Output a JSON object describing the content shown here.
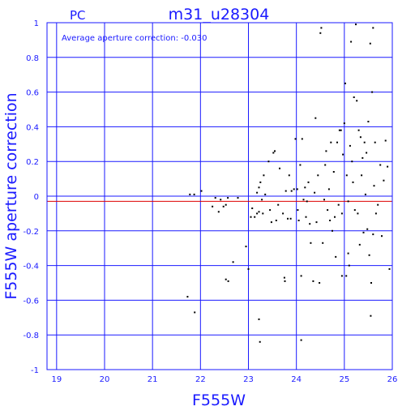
{
  "chart_data": {
    "type": "scatter",
    "corner_label": "PC",
    "title": "m31_u28304",
    "xlabel": "F555W",
    "ylabel": "F555W aperture correction",
    "annotation": "Average aperture correction: -0.030",
    "xlim": [
      18.8,
      26.0
    ],
    "ylim": [
      -1.0,
      1.0
    ],
    "x_ticks": [
      19,
      20,
      21,
      22,
      23,
      24,
      25,
      26
    ],
    "y_ticks": [
      -1,
      -0.8,
      -0.6,
      -0.4,
      -0.2,
      0,
      0.2,
      0.4,
      0.6,
      0.8,
      1
    ],
    "y_tick_labels": [
      "-1",
      "-0.8",
      "-0.6",
      "-0.4",
      "-0.2",
      "0",
      "0.2",
      "0.4",
      "0.6",
      "0.8",
      "1"
    ],
    "grid": true,
    "average_line": -0.03,
    "colors": {
      "axes": "#1a1aff",
      "average_line": "#dd0000",
      "points": "#000000"
    },
    "points": [
      [
        21.78,
        0.01
      ],
      [
        21.87,
        0.01
      ],
      [
        22.02,
        0.03
      ],
      [
        22.25,
        -0.06
      ],
      [
        22.31,
        -0.01
      ],
      [
        22.38,
        -0.09
      ],
      [
        22.42,
        -0.02
      ],
      [
        22.48,
        -0.06
      ],
      [
        22.53,
        -0.05
      ],
      [
        22.57,
        -0.01
      ],
      [
        22.78,
        -0.01
      ],
      [
        22.68,
        -0.38
      ],
      [
        22.53,
        -0.48
      ],
      [
        22.58,
        -0.49
      ],
      [
        21.73,
        -0.58
      ],
      [
        21.88,
        -0.67
      ],
      [
        22.95,
        -0.29
      ],
      [
        23.0,
        -0.42
      ],
      [
        23.05,
        -0.12
      ],
      [
        23.08,
        -0.07
      ],
      [
        23.13,
        -0.12
      ],
      [
        23.18,
        -0.1
      ],
      [
        23.22,
        -0.09
      ],
      [
        23.18,
        0.02
      ],
      [
        23.22,
        0.05
      ],
      [
        23.25,
        0.08
      ],
      [
        23.28,
        -0.02
      ],
      [
        23.32,
        0.12
      ],
      [
        23.3,
        -0.1
      ],
      [
        23.35,
        0.01
      ],
      [
        23.42,
        0.2
      ],
      [
        23.45,
        -0.08
      ],
      [
        23.48,
        -0.15
      ],
      [
        23.52,
        0.25
      ],
      [
        23.55,
        0.26
      ],
      [
        23.58,
        -0.14
      ],
      [
        23.62,
        -0.05
      ],
      [
        23.65,
        0.16
      ],
      [
        23.72,
        -0.1
      ],
      [
        23.75,
        -0.47
      ],
      [
        23.76,
        -0.49
      ],
      [
        23.78,
        0.03
      ],
      [
        23.82,
        -0.13
      ],
      [
        23.85,
        0.12
      ],
      [
        23.88,
        -0.13
      ],
      [
        23.9,
        0.03
      ],
      [
        23.95,
        0.04
      ],
      [
        23.98,
        0.33
      ],
      [
        24.02,
        0.04
      ],
      [
        24.03,
        -0.08
      ],
      [
        24.05,
        -0.14
      ],
      [
        24.08,
        0.18
      ],
      [
        24.1,
        -0.46
      ],
      [
        24.12,
        0.33
      ],
      [
        24.1,
        -0.83
      ],
      [
        23.22,
        -0.71
      ],
      [
        23.24,
        -0.84
      ],
      [
        24.15,
        -0.02
      ],
      [
        24.18,
        0.05
      ],
      [
        24.2,
        -0.12
      ],
      [
        24.22,
        -0.03
      ],
      [
        24.25,
        0.08
      ],
      [
        24.28,
        -0.16
      ],
      [
        24.3,
        -0.27
      ],
      [
        24.35,
        -0.49
      ],
      [
        24.38,
        0.02
      ],
      [
        24.4,
        0.45
      ],
      [
        24.42,
        -0.15
      ],
      [
        24.45,
        0.12
      ],
      [
        24.48,
        -0.5
      ],
      [
        24.5,
        0.94
      ],
      [
        24.52,
        0.97
      ],
      [
        24.55,
        -0.27
      ],
      [
        24.58,
        -0.02
      ],
      [
        24.6,
        0.18
      ],
      [
        24.62,
        0.26
      ],
      [
        24.65,
        -0.08
      ],
      [
        24.68,
        0.04
      ],
      [
        24.7,
        -0.14
      ],
      [
        24.72,
        0.31
      ],
      [
        24.75,
        -0.2
      ],
      [
        24.78,
        0.14
      ],
      [
        24.8,
        -0.12
      ],
      [
        24.82,
        -0.35
      ],
      [
        24.85,
        0.31
      ],
      [
        24.88,
        -0.05
      ],
      [
        24.9,
        0.38
      ],
      [
        24.93,
        0.38
      ],
      [
        24.95,
        -0.1
      ],
      [
        24.97,
        0.24
      ],
      [
        25.0,
        0.42
      ],
      [
        25.02,
        0.65
      ],
      [
        25.04,
        -0.46
      ],
      [
        25.05,
        0.12
      ],
      [
        25.08,
        -0.03
      ],
      [
        25.1,
        -0.4
      ],
      [
        25.12,
        0.29
      ],
      [
        25.14,
        0.89
      ],
      [
        25.16,
        0.2
      ],
      [
        25.18,
        0.08
      ],
      [
        25.2,
        0.57
      ],
      [
        25.22,
        -0.08
      ],
      [
        25.24,
        0.99
      ],
      [
        25.26,
        0.55
      ],
      [
        25.28,
        -0.1
      ],
      [
        25.3,
        0.38
      ],
      [
        25.32,
        -0.28
      ],
      [
        25.34,
        0.34
      ],
      [
        25.36,
        0.12
      ],
      [
        25.38,
        0.22
      ],
      [
        25.4,
        -0.21
      ],
      [
        25.42,
        0.31
      ],
      [
        25.44,
        0.01
      ],
      [
        25.46,
        0.25
      ],
      [
        25.48,
        -0.19
      ],
      [
        25.5,
        0.43
      ],
      [
        25.52,
        -0.34
      ],
      [
        25.54,
        0.88
      ],
      [
        25.56,
        -0.5
      ],
      [
        25.58,
        0.6
      ],
      [
        25.6,
        -0.22
      ],
      [
        25.62,
        0.06
      ],
      [
        25.64,
        0.31
      ],
      [
        25.66,
        -0.1
      ],
      [
        25.7,
        -0.05
      ],
      [
        25.75,
        0.18
      ],
      [
        25.78,
        -0.23
      ],
      [
        25.82,
        0.09
      ],
      [
        25.86,
        0.32
      ],
      [
        25.9,
        0.17
      ],
      [
        25.94,
        -0.42
      ],
      [
        25.55,
        -0.69
      ],
      [
        25.6,
        0.97
      ],
      [
        24.95,
        -0.46
      ],
      [
        25.08,
        -0.33
      ]
    ]
  }
}
